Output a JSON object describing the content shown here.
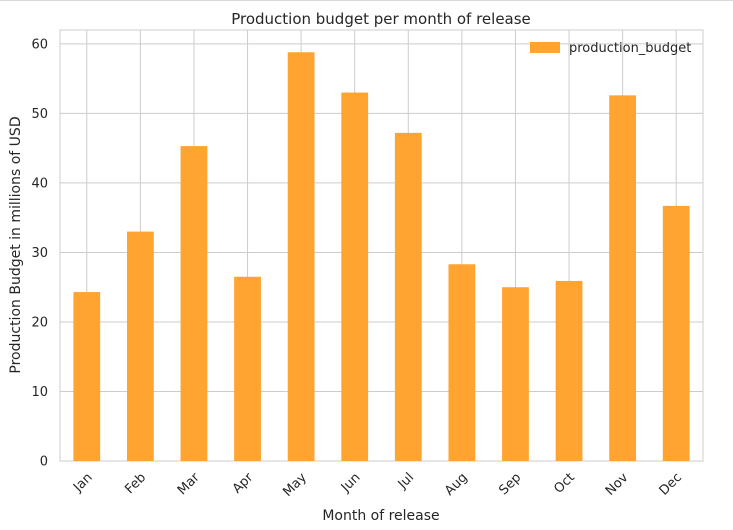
{
  "chart_data": {
    "type": "bar",
    "title": "Production budget per month of release",
    "xlabel": "Month of release",
    "ylabel": "Production Budget in millions of USD",
    "categories": [
      "Jan",
      "Feb",
      "Mar",
      "Apr",
      "May",
      "Jun",
      "Jul",
      "Aug",
      "Sep",
      "Oct",
      "Nov",
      "Dec"
    ],
    "series": [
      {
        "name": "production_budget",
        "values": [
          24.3,
          33.0,
          45.3,
          26.5,
          58.8,
          53.0,
          47.2,
          28.3,
          25.0,
          25.9,
          52.6,
          36.7
        ]
      }
    ],
    "ylim": [
      0,
      62
    ],
    "yticks": [
      0,
      10,
      20,
      30,
      40,
      50,
      60
    ],
    "grid": true,
    "legend_position": "top-right",
    "bar_color": "#ffa431",
    "grid_color": "#cccccc"
  }
}
